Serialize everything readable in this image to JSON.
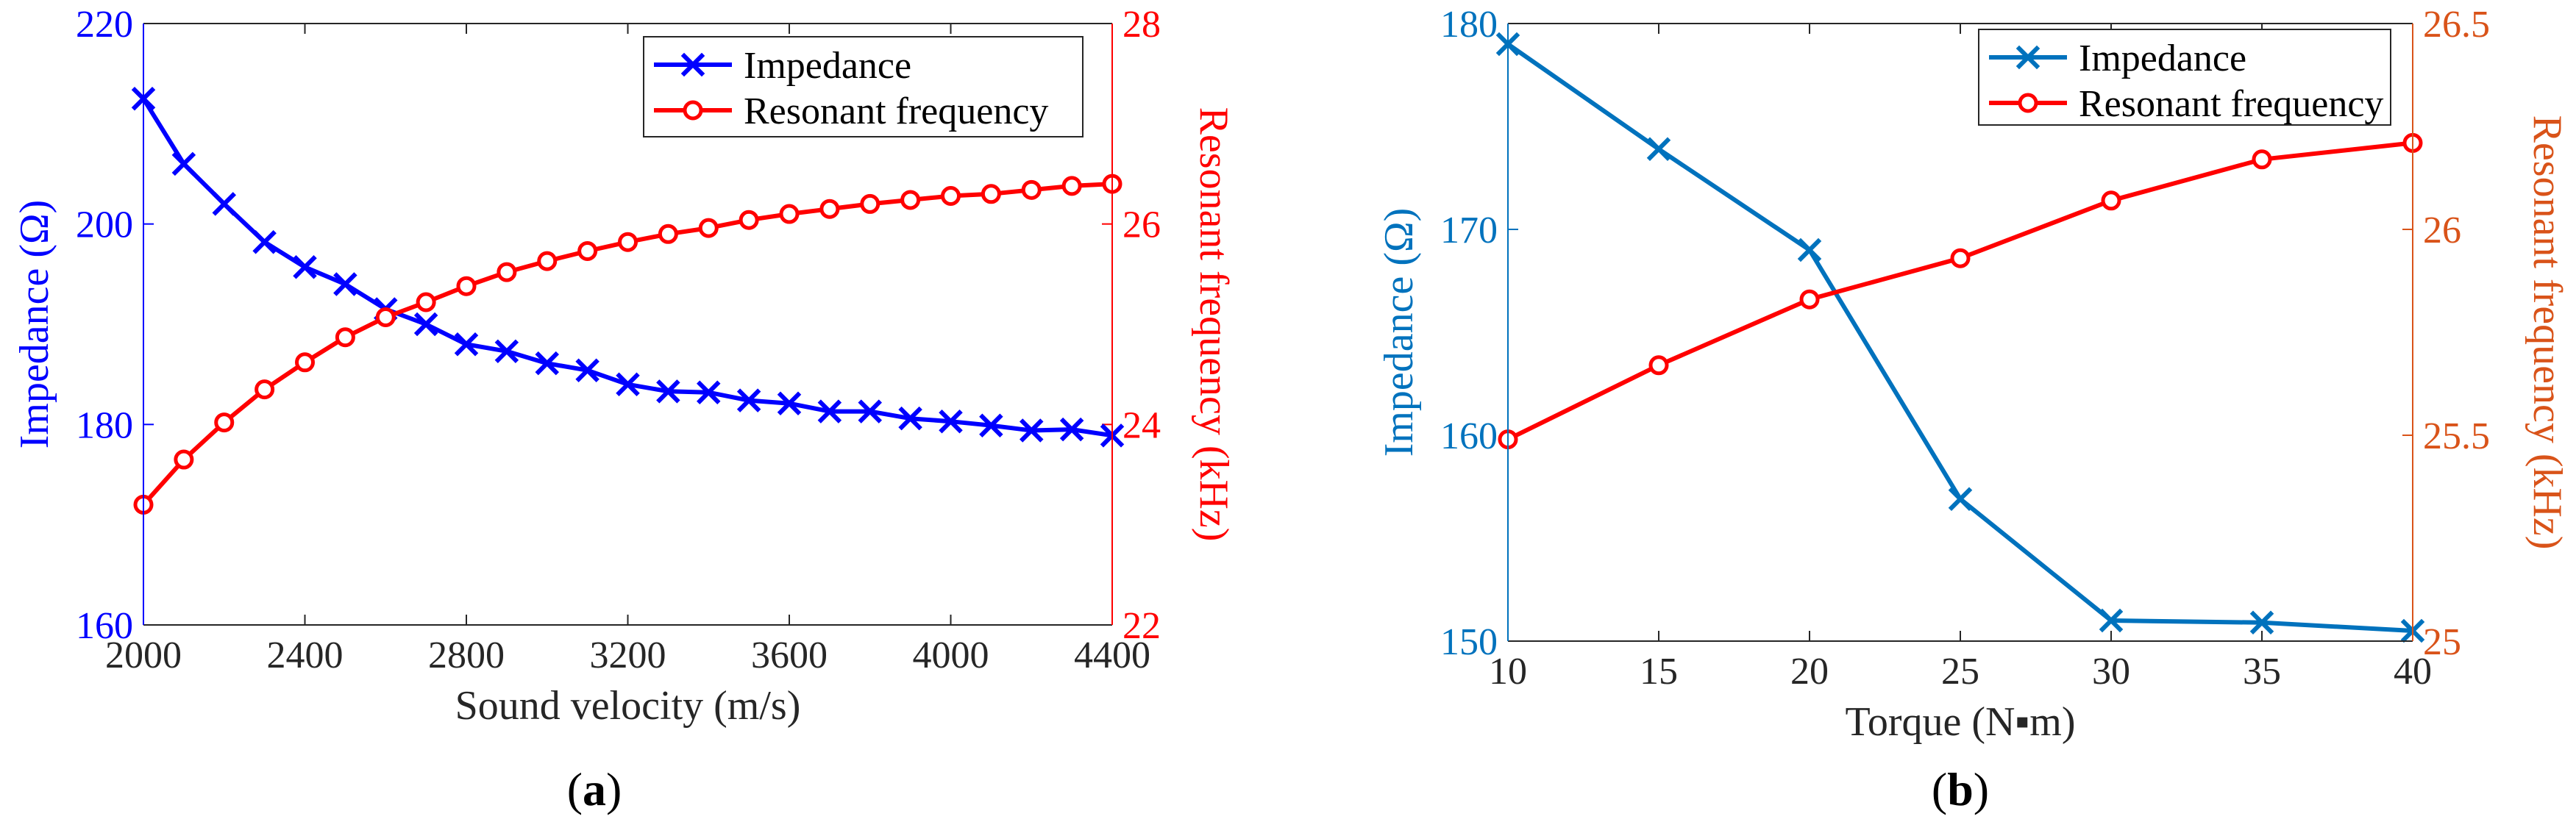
{
  "chart_data": [
    {
      "type": "line",
      "panel": "a",
      "caption": {
        "open": "(",
        "letter": "a",
        "close": ")"
      },
      "xlabel": "Sound velocity (m/s)",
      "xlim": [
        2000,
        4400
      ],
      "xticks": [
        2000,
        2400,
        2800,
        3200,
        3600,
        4000,
        4400
      ],
      "ylabel_left": "Impedance (Ω)",
      "ylim_left": [
        160,
        220
      ],
      "yticks_left": [
        160,
        180,
        200,
        220
      ],
      "ylabel_right": "Resonant frequency (kHz)",
      "ylim_right": [
        22,
        28
      ],
      "yticks_right": [
        22,
        24,
        26,
        28
      ],
      "left_axis_color": "#0000ff",
      "right_axis_color": "#ff0000",
      "legend_position": "top-right",
      "x": [
        2000,
        2100,
        2200,
        2300,
        2400,
        2500,
        2600,
        2700,
        2800,
        2900,
        3000,
        3100,
        3200,
        3300,
        3400,
        3500,
        3600,
        3700,
        3800,
        3900,
        4000,
        4100,
        4200,
        4300,
        4400
      ],
      "series": [
        {
          "name": "Impedance",
          "axis": "left",
          "marker": "x",
          "color": "#0000ff",
          "values": [
            212.5,
            206.0,
            202.0,
            198.2,
            195.7,
            194.0,
            191.5,
            190.0,
            188.0,
            187.3,
            186.1,
            185.4,
            184.0,
            183.3,
            183.2,
            182.4,
            182.1,
            181.3,
            181.3,
            180.6,
            180.3,
            179.9,
            179.4,
            179.5,
            178.9
          ]
        },
        {
          "name": "Resonant frequency",
          "axis": "right",
          "marker": "o",
          "color": "#ff0000",
          "values": [
            23.2,
            23.65,
            24.02,
            24.35,
            24.62,
            24.87,
            25.07,
            25.22,
            25.38,
            25.52,
            25.63,
            25.73,
            25.82,
            25.9,
            25.96,
            26.04,
            26.1,
            26.15,
            26.2,
            26.24,
            26.28,
            26.3,
            26.34,
            26.38,
            26.4
          ]
        }
      ]
    },
    {
      "type": "line",
      "panel": "b",
      "caption": {
        "open": "(",
        "letter": "b",
        "close": ")"
      },
      "xlabel": "Torque (N▪m)",
      "xlim": [
        10,
        40
      ],
      "xticks": [
        10,
        15,
        20,
        25,
        30,
        35,
        40
      ],
      "ylabel_left": "Impedance (Ω)",
      "ylim_left": [
        150,
        180
      ],
      "yticks_left": [
        150,
        160,
        170,
        180
      ],
      "ylabel_right": "Resonant frequency (kHz)",
      "ylim_right": [
        25,
        26.5
      ],
      "yticks_right": [
        25,
        25.5,
        26,
        26.5
      ],
      "left_axis_color": "#0072bd",
      "right_axis_color": "#d95319",
      "legend_position": "top-right",
      "x": [
        10,
        15,
        20,
        25,
        30,
        35,
        40
      ],
      "series": [
        {
          "name": "Impedance",
          "axis": "left",
          "marker": "x",
          "color": "#0072bd",
          "values": [
            179.0,
            173.9,
            169.0,
            156.9,
            151.0,
            150.9,
            150.5
          ]
        },
        {
          "name": "Resonant frequency",
          "axis": "right",
          "marker": "o",
          "color": "#ff0000",
          "values": [
            25.49,
            25.67,
            25.83,
            25.93,
            26.07,
            26.17,
            26.21
          ]
        }
      ]
    }
  ]
}
